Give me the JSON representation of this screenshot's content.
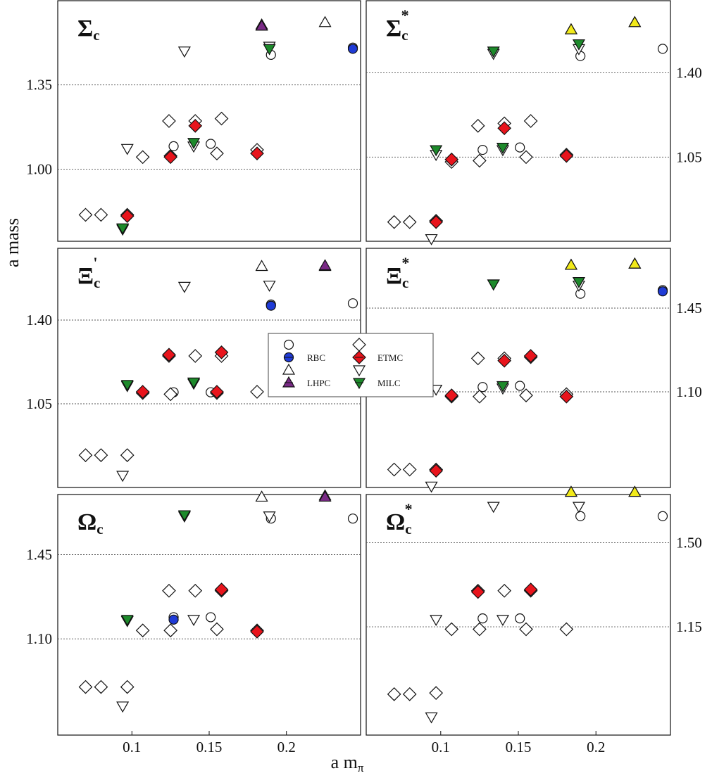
{
  "figure": {
    "xlabel": "a m",
    "xlabel_sub": "π",
    "ylabel": "a mass"
  },
  "legend": {
    "entries": [
      {
        "label": "RBC",
        "marker": "circle",
        "fill": "#1f3bd6"
      },
      {
        "label": "ETMC",
        "marker": "diamond",
        "fill": "#e8141c"
      },
      {
        "label": "LHPC",
        "marker": "triangle-up",
        "fill": "#7a2a86"
      },
      {
        "label": "MILC",
        "marker": "triangle-down",
        "fill": "#1d8a2b"
      }
    ]
  },
  "colors": {
    "RBC": "#1f3bd6",
    "ETMC": "#e8141c",
    "LHPC": "#7a2a86",
    "MILC": "#1d8a2b",
    "LHPC_star": "#f2ea1a"
  },
  "chart_data": [
    {
      "type": "scatter",
      "panel": "Sigma_c",
      "title": "Σ",
      "title_sub": "c",
      "title_sup": "",
      "y_axis_side": "left",
      "xlim": [
        0.052,
        0.248
      ],
      "ylim": [
        0.7,
        1.7
      ],
      "yticks": [
        1.0,
        1.35
      ],
      "xticks": [],
      "series": [
        {
          "name": "RBC",
          "marker": "circle",
          "points": [
            [
              0.127,
              1.095
            ],
            [
              0.151,
              1.105
            ],
            [
              0.19,
              1.475
            ],
            [
              0.243,
              1.505
            ]
          ],
          "filled": [
            [
              0.243,
              1.5
            ]
          ]
        },
        {
          "name": "ETMC",
          "marker": "diamond",
          "points": [
            [
              0.07,
              0.81
            ],
            [
              0.08,
              0.81
            ],
            [
              0.097,
              0.81
            ],
            [
              0.107,
              1.05
            ],
            [
              0.124,
              1.2
            ],
            [
              0.125,
              1.055
            ],
            [
              0.141,
              1.2
            ],
            [
              0.155,
              1.065
            ],
            [
              0.158,
              1.21
            ],
            [
              0.181,
              1.08
            ]
          ],
          "filled": [
            [
              0.141,
              1.18
            ],
            [
              0.181,
              1.065
            ],
            [
              0.125,
              1.05
            ],
            [
              0.097,
              0.805
            ]
          ]
        },
        {
          "name": "LHPC",
          "marker": "triangle-up",
          "points": [
            [
              0.184,
              1.6
            ],
            [
              0.225,
              1.61
            ]
          ],
          "filled": [
            [
              0.184,
              1.595
            ]
          ]
        },
        {
          "name": "MILC",
          "marker": "triangle-down",
          "points": [
            [
              0.094,
              0.75
            ],
            [
              0.097,
              1.085
            ],
            [
              0.134,
              1.49
            ],
            [
              0.14,
              1.095
            ],
            [
              0.189,
              1.51
            ]
          ],
          "filled": [
            [
              0.094,
              0.755
            ],
            [
              0.14,
              1.11
            ],
            [
              0.189,
              1.5
            ]
          ]
        }
      ]
    },
    {
      "type": "scatter",
      "panel": "Sigma_c_star",
      "title": "Σ",
      "title_sub": "c",
      "title_sup": "*",
      "y_axis_side": "right",
      "xlim": [
        0.052,
        0.248
      ],
      "ylim": [
        0.7,
        1.7
      ],
      "yticks": [
        1.05,
        1.4
      ],
      "xticks": [],
      "series": [
        {
          "name": "RBC",
          "marker": "circle",
          "points": [
            [
              0.127,
              1.08
            ],
            [
              0.151,
              1.09
            ],
            [
              0.19,
              1.47
            ],
            [
              0.243,
              1.5
            ]
          ],
          "filled": []
        },
        {
          "name": "ETMC",
          "marker": "diamond",
          "points": [
            [
              0.07,
              0.78
            ],
            [
              0.08,
              0.78
            ],
            [
              0.097,
              0.785
            ],
            [
              0.107,
              1.03
            ],
            [
              0.124,
              1.18
            ],
            [
              0.125,
              1.035
            ],
            [
              0.141,
              1.19
            ],
            [
              0.155,
              1.05
            ],
            [
              0.158,
              1.2
            ],
            [
              0.181,
              1.06
            ]
          ],
          "filled": [
            [
              0.107,
              1.04
            ],
            [
              0.141,
              1.17
            ],
            [
              0.181,
              1.055
            ],
            [
              0.097,
              0.78
            ]
          ]
        },
        {
          "name": "LHPC",
          "marker": "triangle-up",
          "points": [
            [
              0.184,
              1.58
            ],
            [
              0.225,
              1.61
            ]
          ],
          "filled": [
            [
              0.184,
              1.58
            ],
            [
              0.225,
              1.61
            ]
          ],
          "star": true
        },
        {
          "name": "MILC",
          "marker": "triangle-down",
          "points": [
            [
              0.094,
              0.71
            ],
            [
              0.097,
              1.06
            ],
            [
              0.134,
              1.48
            ],
            [
              0.14,
              1.08
            ],
            [
              0.189,
              1.5
            ]
          ],
          "filled": [
            [
              0.097,
              1.08
            ],
            [
              0.134,
              1.49
            ],
            [
              0.14,
              1.09
            ],
            [
              0.189,
              1.52
            ]
          ]
        }
      ]
    },
    {
      "type": "scatter",
      "panel": "Xi_c_prime",
      "title": "Ξ",
      "title_sub": "c",
      "title_sup": "'",
      "y_axis_side": "left",
      "xlim": [
        0.052,
        0.248
      ],
      "ylim": [
        0.7,
        1.7
      ],
      "yticks": [
        1.05,
        1.4
      ],
      "xticks": [],
      "series": [
        {
          "name": "RBC",
          "marker": "circle",
          "points": [
            [
              0.127,
              1.098
            ],
            [
              0.151,
              1.098
            ],
            [
              0.19,
              1.465
            ],
            [
              0.243,
              1.47
            ]
          ],
          "filled": [
            [
              0.19,
              1.46
            ]
          ]
        },
        {
          "name": "ETMC",
          "marker": "diamond",
          "points": [
            [
              0.07,
              0.835
            ],
            [
              0.08,
              0.835
            ],
            [
              0.097,
              0.835
            ],
            [
              0.107,
              1.095
            ],
            [
              0.124,
              1.25
            ],
            [
              0.125,
              1.09
            ],
            [
              0.141,
              1.25
            ],
            [
              0.155,
              1.095
            ],
            [
              0.158,
              1.25
            ],
            [
              0.181,
              1.1
            ]
          ],
          "filled": [
            [
              0.124,
              1.255
            ],
            [
              0.158,
              1.265
            ],
            [
              0.107,
              1.1
            ],
            [
              0.155,
              1.1
            ]
          ]
        },
        {
          "name": "LHPC",
          "marker": "triangle-up",
          "points": [
            [
              0.184,
              1.625
            ],
            [
              0.225,
              1.625
            ]
          ],
          "filled": [
            [
              0.225,
              1.628
            ]
          ]
        },
        {
          "name": "MILC",
          "marker": "triangle-down",
          "points": [
            [
              0.094,
              0.75
            ],
            [
              0.097,
              1.125
            ],
            [
              0.134,
              1.54
            ],
            [
              0.14,
              1.135
            ],
            [
              0.189,
              1.545
            ]
          ],
          "filled": [
            [
              0.097,
              1.13
            ],
            [
              0.14,
              1.14
            ]
          ]
        }
      ]
    },
    {
      "type": "scatter",
      "panel": "Xi_c_star",
      "title": "Ξ",
      "title_sub": "c",
      "title_sup": "*",
      "y_axis_side": "right",
      "xlim": [
        0.052,
        0.248
      ],
      "ylim": [
        0.7,
        1.7
      ],
      "yticks": [
        1.1,
        1.45
      ],
      "xticks": [],
      "series": [
        {
          "name": "RBC",
          "marker": "circle",
          "points": [
            [
              0.127,
              1.12
            ],
            [
              0.151,
              1.125
            ],
            [
              0.19,
              1.51
            ],
            [
              0.243,
              1.525
            ]
          ],
          "filled": [
            [
              0.243,
              1.52
            ]
          ]
        },
        {
          "name": "ETMC",
          "marker": "diamond",
          "points": [
            [
              0.07,
              0.775
            ],
            [
              0.08,
              0.775
            ],
            [
              0.097,
              0.775
            ],
            [
              0.107,
              1.08
            ],
            [
              0.124,
              1.24
            ],
            [
              0.125,
              1.08
            ],
            [
              0.141,
              1.24
            ],
            [
              0.155,
              1.085
            ],
            [
              0.158,
              1.245
            ],
            [
              0.181,
              1.09
            ]
          ],
          "filled": [
            [
              0.107,
              1.085
            ],
            [
              0.141,
              1.23
            ],
            [
              0.158,
              1.25
            ],
            [
              0.181,
              1.08
            ],
            [
              0.097,
              0.77
            ]
          ]
        },
        {
          "name": "LHPC",
          "marker": "triangle-up",
          "points": [
            [
              0.184,
              1.63
            ],
            [
              0.225,
              1.635
            ]
          ],
          "filled": [
            [
              0.184,
              1.63
            ],
            [
              0.225,
              1.635
            ]
          ],
          "star": true
        },
        {
          "name": "MILC",
          "marker": "triangle-down",
          "points": [
            [
              0.094,
              0.705
            ],
            [
              0.097,
              1.11
            ],
            [
              0.134,
              1.55
            ],
            [
              0.14,
              1.115
            ],
            [
              0.189,
              1.545
            ]
          ],
          "filled": [
            [
              0.14,
              1.125
            ],
            [
              0.189,
              1.56
            ],
            [
              0.134,
              1.55
            ]
          ]
        }
      ]
    },
    {
      "type": "scatter",
      "panel": "Omega_c",
      "title": "Ω",
      "title_sub": "c",
      "title_sup": "",
      "y_axis_side": "left",
      "xlim": [
        0.052,
        0.248
      ],
      "ylim": [
        0.7,
        1.7
      ],
      "yticks": [
        1.1,
        1.45
      ],
      "xticks": [
        0.1,
        0.15,
        0.2
      ],
      "series": [
        {
          "name": "RBC",
          "marker": "circle",
          "points": [
            [
              0.127,
              1.19
            ],
            [
              0.151,
              1.19
            ],
            [
              0.19,
              1.6
            ],
            [
              0.243,
              1.6
            ]
          ],
          "filled": [
            [
              0.127,
              1.18
            ]
          ]
        },
        {
          "name": "ETMC",
          "marker": "diamond",
          "points": [
            [
              0.07,
              0.9
            ],
            [
              0.08,
              0.9
            ],
            [
              0.097,
              0.9
            ],
            [
              0.107,
              1.135
            ],
            [
              0.124,
              1.3
            ],
            [
              0.125,
              1.135
            ],
            [
              0.141,
              1.3
            ],
            [
              0.155,
              1.14
            ],
            [
              0.158,
              1.3
            ],
            [
              0.181,
              1.135
            ]
          ],
          "filled": [
            [
              0.158,
              1.305
            ],
            [
              0.181,
              1.13
            ]
          ]
        },
        {
          "name": "LHPC",
          "marker": "triangle-up",
          "points": [
            [
              0.184,
              1.69
            ],
            [
              0.225,
              1.695
            ]
          ],
          "filled": [
            [
              0.225,
              1.69
            ]
          ]
        },
        {
          "name": "MILC",
          "marker": "triangle-down",
          "points": [
            [
              0.094,
              0.82
            ],
            [
              0.097,
              1.175
            ],
            [
              0.134,
              1.61
            ],
            [
              0.14,
              1.18
            ],
            [
              0.189,
              1.61
            ]
          ],
          "filled": [
            [
              0.134,
              1.615
            ],
            [
              0.097,
              1.18
            ]
          ]
        }
      ]
    },
    {
      "type": "scatter",
      "panel": "Omega_c_star",
      "title": "Ω",
      "title_sub": "c",
      "title_sup": "*",
      "y_axis_side": "right",
      "xlim": [
        0.052,
        0.248
      ],
      "ylim": [
        0.7,
        1.7
      ],
      "yticks": [
        1.15,
        1.5
      ],
      "xticks": [
        0.1,
        0.15,
        0.2
      ],
      "series": [
        {
          "name": "RBC",
          "marker": "circle",
          "points": [
            [
              0.127,
              1.185
            ],
            [
              0.151,
              1.185
            ],
            [
              0.19,
              1.61
            ],
            [
              0.243,
              1.61
            ]
          ],
          "filled": []
        },
        {
          "name": "ETMC",
          "marker": "diamond",
          "points": [
            [
              0.07,
              0.87
            ],
            [
              0.08,
              0.87
            ],
            [
              0.097,
              0.875
            ],
            [
              0.107,
              1.14
            ],
            [
              0.124,
              1.3
            ],
            [
              0.125,
              1.14
            ],
            [
              0.141,
              1.3
            ],
            [
              0.155,
              1.14
            ],
            [
              0.158,
              1.3
            ],
            [
              0.181,
              1.14
            ]
          ],
          "filled": [
            [
              0.124,
              1.295
            ],
            [
              0.158,
              1.305
            ]
          ]
        },
        {
          "name": "LHPC",
          "marker": "triangle-up",
          "points": [
            [
              0.184,
              1.71
            ],
            [
              0.225,
              1.71
            ]
          ],
          "filled": [
            [
              0.184,
              1.71
            ],
            [
              0.225,
              1.71
            ]
          ],
          "star": true
        },
        {
          "name": "MILC",
          "marker": "triangle-down",
          "points": [
            [
              0.094,
              0.775
            ],
            [
              0.097,
              1.18
            ],
            [
              0.134,
              1.65
            ],
            [
              0.14,
              1.18
            ],
            [
              0.189,
              1.65
            ]
          ],
          "filled": []
        }
      ]
    }
  ]
}
